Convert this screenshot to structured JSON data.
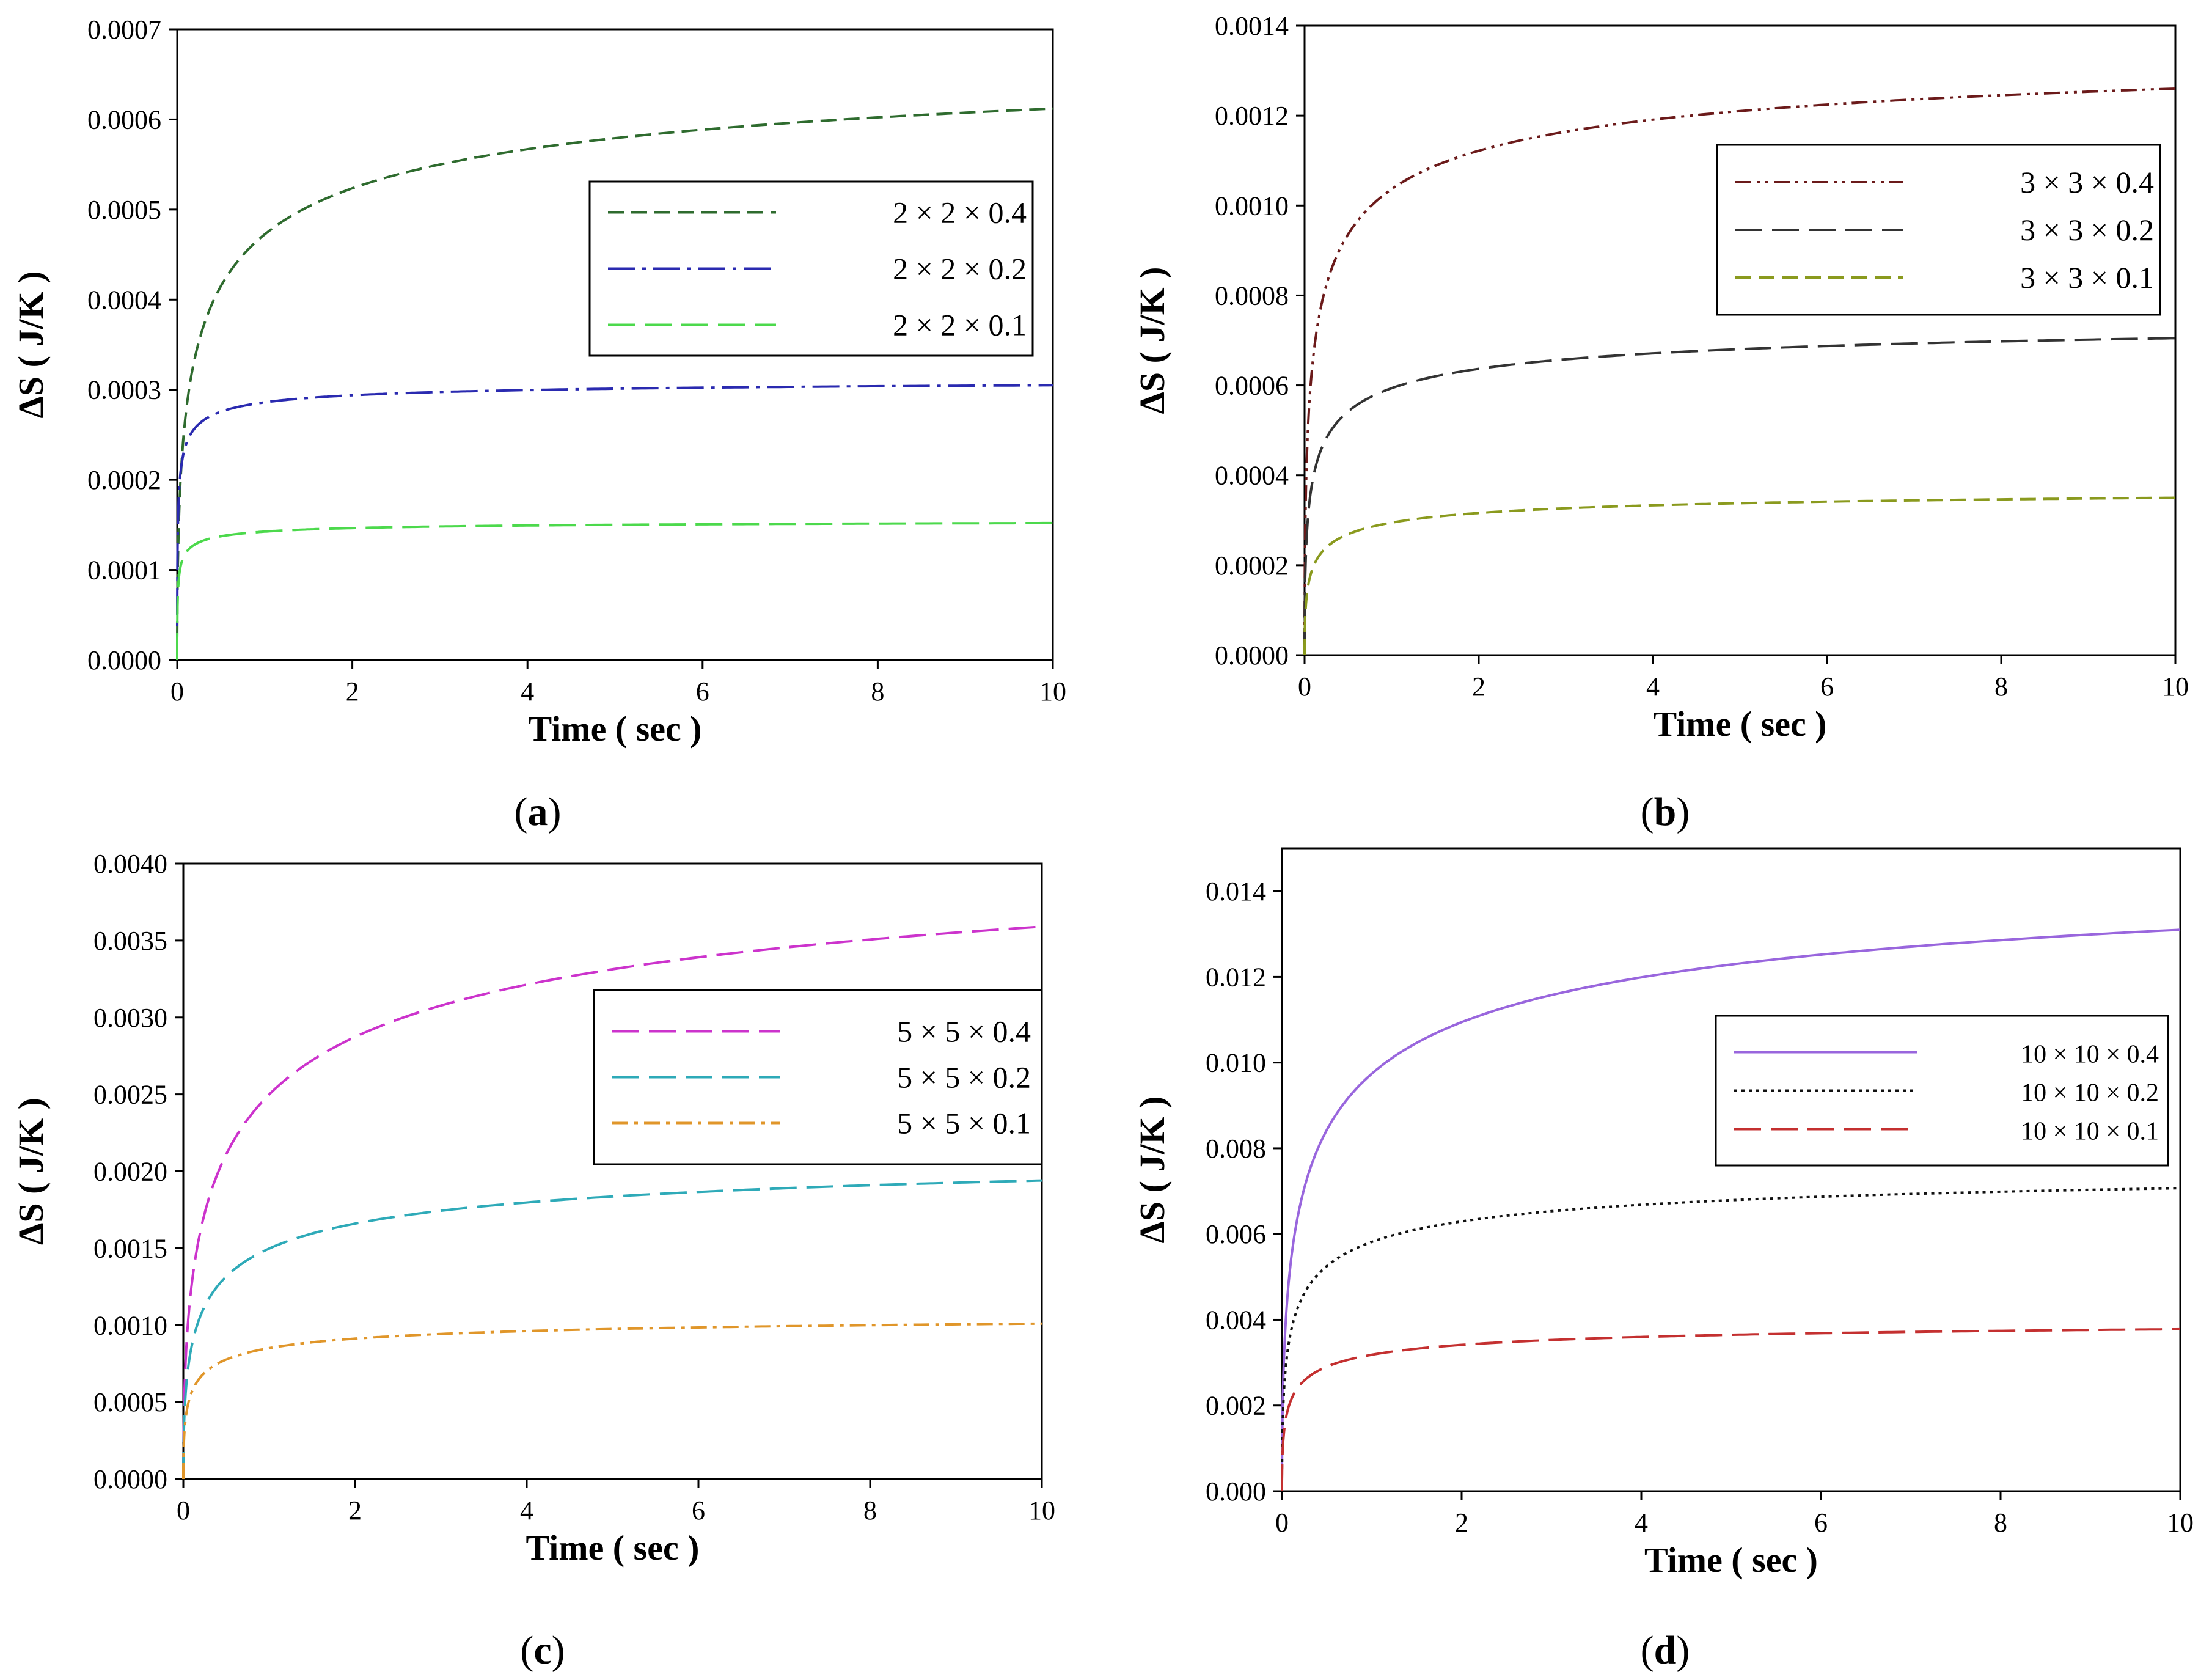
{
  "chart_data": [
    {
      "type": "line",
      "id": "a",
      "caption": {
        "open": "(",
        "letter": "a",
        "close": ")"
      },
      "xlabel": "Time ( sec )",
      "ylabel": "ΔS ( J/K )",
      "xlim": [
        0,
        10
      ],
      "ylim": [
        0,
        0.0007
      ],
      "xticks": [
        0,
        2,
        4,
        6,
        8,
        10
      ],
      "xtick_labels": [
        "0",
        "2",
        "4",
        "6",
        "8",
        "10"
      ],
      "yticks": [
        0,
        0.0001,
        0.0002,
        0.0003,
        0.0004,
        0.0005,
        0.0006,
        0.0007
      ],
      "ytick_labels": [
        "0.0000",
        "0.0001",
        "0.0002",
        "0.0003",
        "0.0004",
        "0.0005",
        "0.0006",
        "0.0007"
      ],
      "legend_position": "center-right",
      "series": [
        {
          "name": "2 × 2 × 0.4",
          "color": "#2e6b2e",
          "dash": "dash",
          "final": 0.000612,
          "shape": 0.5
        },
        {
          "name": "2 × 2 × 0.2",
          "color": "#2a2ab0",
          "dash": "longdash-dot",
          "final": 0.000305,
          "shape": 0.1
        },
        {
          "name": "2 × 2 × 0.1",
          "color": "#4cd94c",
          "dash": "longdash",
          "final": 0.000152,
          "shape": 0.1
        }
      ]
    },
    {
      "type": "line",
      "id": "b",
      "caption": {
        "open": "(",
        "letter": "b",
        "close": ")"
      },
      "xlabel": "Time ( sec )",
      "ylabel": "ΔS ( J/K )",
      "xlim": [
        0,
        10
      ],
      "ylim": [
        0,
        0.0014
      ],
      "xticks": [
        0,
        2,
        4,
        6,
        8,
        10
      ],
      "xtick_labels": [
        "0",
        "2",
        "4",
        "6",
        "8",
        "10"
      ],
      "yticks": [
        0,
        0.0002,
        0.0004,
        0.0006,
        0.0008,
        0.001,
        0.0012,
        0.0014
      ],
      "ytick_labels": [
        "0.0000",
        "0.0002",
        "0.0004",
        "0.0006",
        "0.0008",
        "0.0010",
        "0.0012",
        "0.0014"
      ],
      "legend_position": "top-right",
      "series": [
        {
          "name": "3 × 3 × 0.4",
          "color": "#6b1a1a",
          "dash": "dash-dot-dot",
          "final": 0.00126,
          "shape": 0.35
        },
        {
          "name": "3 × 3 × 0.2",
          "color": "#333333",
          "dash": "longdash",
          "final": 0.000705,
          "shape": 0.3
        },
        {
          "name": "3 × 3 × 0.1",
          "color": "#8a9a1e",
          "dash": "dash",
          "final": 0.00035,
          "shape": 0.3
        }
      ]
    },
    {
      "type": "line",
      "id": "c",
      "caption": {
        "open": "(",
        "letter": "c",
        "close": ")"
      },
      "xlabel": "Time ( sec )",
      "ylabel": "ΔS ( J/K )",
      "xlim": [
        0,
        10
      ],
      "ylim": [
        0,
        0.004
      ],
      "xticks": [
        0,
        2,
        4,
        6,
        8,
        10
      ],
      "xtick_labels": [
        "0",
        "2",
        "4",
        "6",
        "8",
        "10"
      ],
      "yticks": [
        0,
        0.0005,
        0.001,
        0.0015,
        0.002,
        0.0025,
        0.003,
        0.0035,
        0.004
      ],
      "ytick_labels": [
        "0.0000",
        "0.0005",
        "0.0010",
        "0.0015",
        "0.0020",
        "0.0025",
        "0.0030",
        "0.0035",
        "0.0040"
      ],
      "legend_position": "center-right",
      "series": [
        {
          "name": "5 × 5 × 0.4",
          "color": "#cc33cc",
          "dash": "longdash",
          "final": 0.00359,
          "shape": 0.8
        },
        {
          "name": "5 × 5 × 0.2",
          "color": "#2eaab8",
          "dash": "longdash",
          "final": 0.00194,
          "shape": 0.5
        },
        {
          "name": "5 × 5 × 0.1",
          "color": "#e0962a",
          "dash": "dash-dot",
          "final": 0.00101,
          "shape": 0.3
        }
      ]
    },
    {
      "type": "line",
      "id": "d",
      "caption": {
        "open": "(",
        "letter": "d",
        "close": ")"
      },
      "xlabel": "Time ( sec )",
      "ylabel": "ΔS ( J/K )",
      "xlim": [
        0,
        10
      ],
      "ylim": [
        0,
        0.015
      ],
      "xticks": [
        0,
        2,
        4,
        6,
        8,
        10
      ],
      "xtick_labels": [
        "0",
        "2",
        "4",
        "6",
        "8",
        "10"
      ],
      "yticks": [
        0,
        0.002,
        0.004,
        0.006,
        0.008,
        0.01,
        0.012,
        0.014
      ],
      "ytick_labels": [
        "0.000",
        "0.002",
        "0.004",
        "0.006",
        "0.008",
        "0.010",
        "0.012",
        "0.014"
      ],
      "legend_position": "center-right",
      "series": [
        {
          "name": "10 × 10 × 0.4",
          "color": "#9966dd",
          "dash": "solid",
          "final": 0.0131,
          "shape": 0.6
        },
        {
          "name": "10 × 10 × 0.2",
          "color": "#111111",
          "dash": "dot",
          "final": 0.00707,
          "shape": 0.35
        },
        {
          "name": "10 × 10 × 0.1",
          "color": "#c43030",
          "dash": "longdash",
          "final": 0.00378,
          "shape": 0.3
        }
      ]
    }
  ]
}
